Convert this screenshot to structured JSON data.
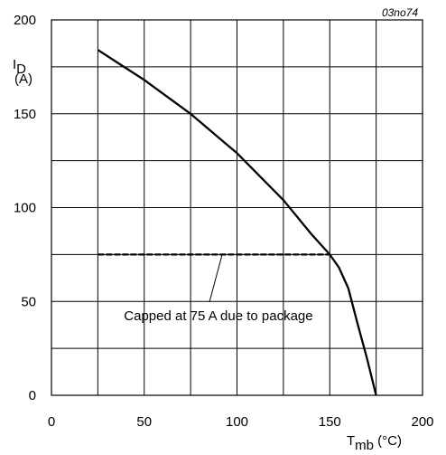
{
  "chart_data": {
    "type": "line",
    "figure_code": "03no74",
    "xlabel": {
      "main": "T",
      "sub": "mb",
      "unit": " (°C)"
    },
    "ylabel": {
      "main": "I",
      "sub": "D",
      "unit": "(A)"
    },
    "xlim": [
      0,
      200
    ],
    "ylim": [
      0,
      200
    ],
    "x_ticks": [
      0,
      50,
      100,
      150,
      200
    ],
    "y_ticks": [
      0,
      50,
      100,
      150,
      200
    ],
    "grid": true,
    "series": [
      {
        "style": "solid",
        "points": [
          [
            25,
            184
          ],
          [
            50,
            168
          ],
          [
            75,
            150
          ],
          [
            100,
            129
          ],
          [
            125,
            104
          ],
          [
            140,
            86
          ],
          [
            150,
            75
          ],
          [
            155,
            68
          ],
          [
            160,
            57
          ],
          [
            165,
            38
          ],
          [
            170,
            20
          ],
          [
            175,
            0
          ]
        ]
      },
      {
        "style": "dashed",
        "points": [
          [
            25,
            75
          ],
          [
            150,
            75
          ]
        ]
      }
    ],
    "annotations": [
      {
        "text": "Capped at 75 A due to package",
        "x": 90,
        "y": 40,
        "pointer_to": [
          92,
          75
        ]
      }
    ]
  }
}
